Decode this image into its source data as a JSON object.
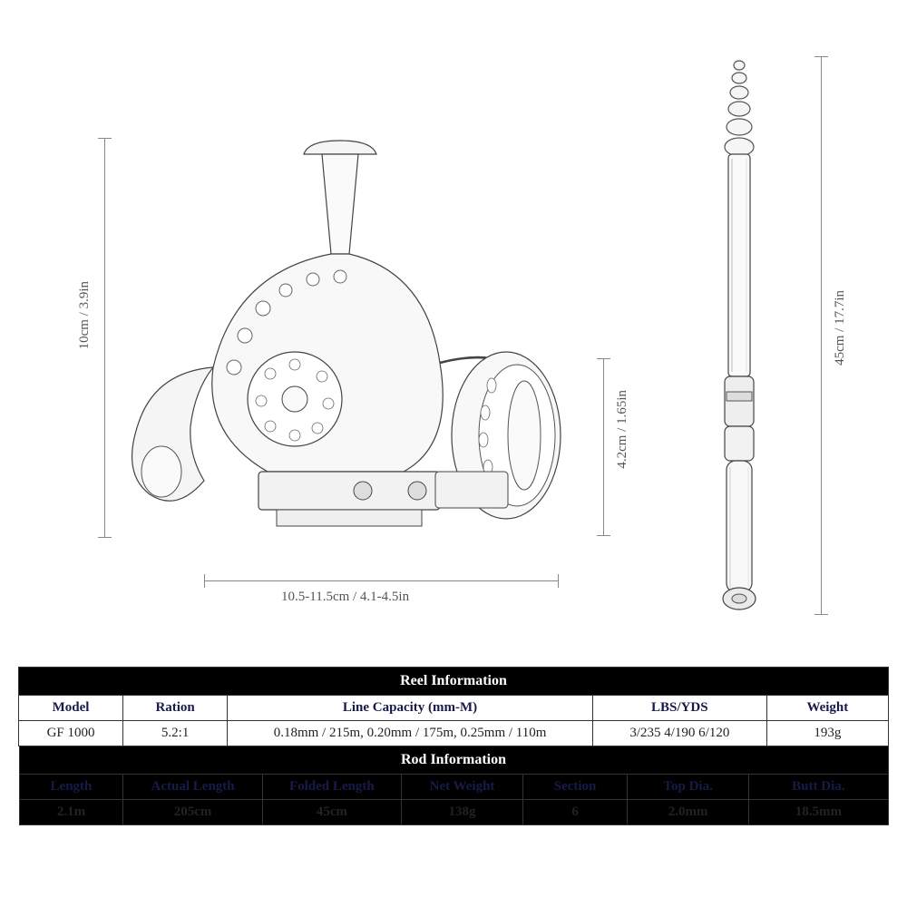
{
  "dims": {
    "reel_height": "10cm / 3.9in",
    "reel_spool_height": "4.2cm / 1.65in",
    "reel_width": "10.5-11.5cm / 4.1-4.5in",
    "rod_height": "45cm / 17.7in"
  },
  "reel_table": {
    "title": "Reel Information",
    "headers": [
      "Model",
      "Ration",
      "Line Capacity (mm-M)",
      "LBS/YDS",
      "Weight"
    ],
    "row": [
      "GF 1000",
      "5.2:1",
      "0.18mm / 215m, 0.20mm / 175m, 0.25mm / 110m",
      "3/235 4/190 6/120",
      "193g"
    ],
    "col_widths": [
      "12%",
      "12%",
      "42%",
      "20%",
      "14%"
    ]
  },
  "rod_table": {
    "title": "Rod Information",
    "headers": [
      "Length",
      "Actual Length",
      "Folded Length",
      "Net Weight",
      "Section",
      "Top Dia.",
      "Butt Dia."
    ],
    "row": [
      "2.1m",
      "205cm",
      "45cm",
      "138g",
      "6",
      "2.0mm",
      "18.5mm"
    ],
    "col_widths": [
      "12%",
      "16%",
      "16%",
      "14%",
      "12%",
      "14%",
      "16%"
    ]
  },
  "colors": {
    "line": "#888888",
    "text": "#555555",
    "header_bg": "#000000",
    "header_fg": "#ffffff",
    "col_head_fg": "#1a1a4a",
    "border": "#333333"
  }
}
